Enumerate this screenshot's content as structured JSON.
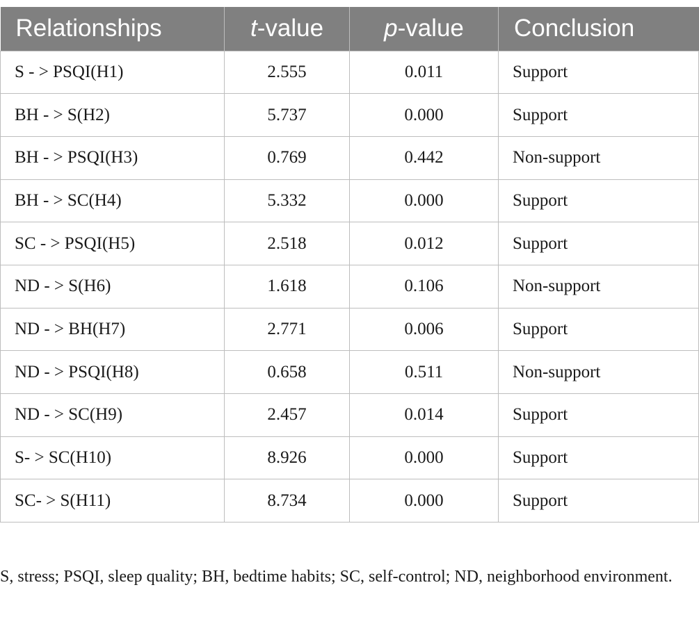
{
  "table": {
    "headers": [
      {
        "prefix": "",
        "ital": "",
        "suffix": "Relationships"
      },
      {
        "prefix": "",
        "ital": "t",
        "suffix": "-value"
      },
      {
        "prefix": "",
        "ital": "p",
        "suffix": "-value"
      },
      {
        "prefix": "",
        "ital": "",
        "suffix": "Conclusion"
      }
    ],
    "rows": [
      [
        "S - > PSQI(H1)",
        "2.555",
        "0.011",
        "Support"
      ],
      [
        "BH - > S(H2)",
        "5.737",
        "0.000",
        "Support"
      ],
      [
        "BH - > PSQI(H3)",
        "0.769",
        "0.442",
        "Non-support"
      ],
      [
        "BH - > SC(H4)",
        "5.332",
        "0.000",
        "Support"
      ],
      [
        "SC - > PSQI(H5)",
        "2.518",
        "0.012",
        "Support"
      ],
      [
        "ND - > S(H6)",
        "1.618",
        "0.106",
        "Non-support"
      ],
      [
        "ND - > BH(H7)",
        "2.771",
        "0.006",
        "Support"
      ],
      [
        "ND - > PSQI(H8)",
        "0.658",
        "0.511",
        "Non-support"
      ],
      [
        "ND - > SC(H9)",
        "2.457",
        "0.014",
        "Support"
      ],
      [
        "S- > SC(H10)",
        "8.926",
        "0.000",
        "Support"
      ],
      [
        "SC- > S(H11)",
        "8.734",
        "0.000",
        "Support"
      ]
    ]
  },
  "footnote": "S, stress; PSQI, sleep quality; BH, bedtime habits; SC, self-control; ND, neighborhood environment.",
  "colors": {
    "header_background": "#808080",
    "header_text": "#ffffff",
    "grid_lines": "#bdbdbd"
  }
}
